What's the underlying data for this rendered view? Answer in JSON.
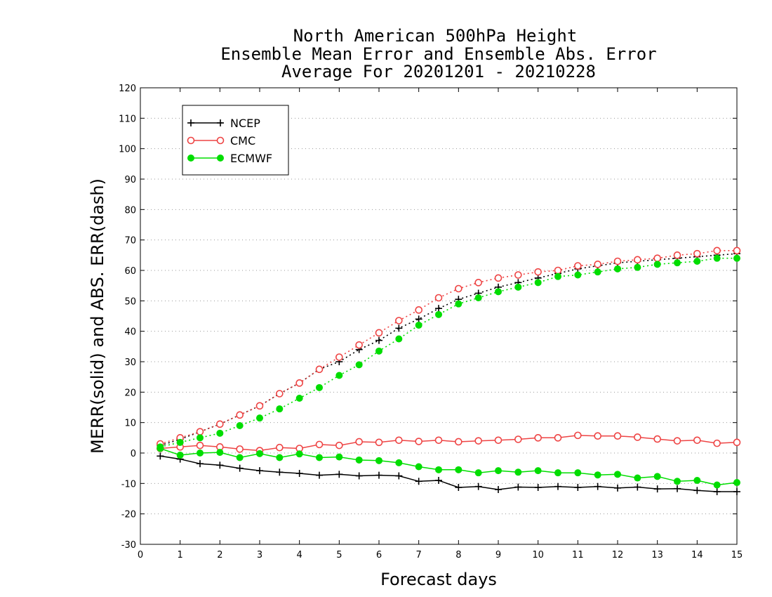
{
  "chart_data": {
    "type": "line",
    "title": [
      "North American 500hPa Height",
      "Ensemble Mean Error and Ensemble Abs. Error",
      "Average For 20201201 - 20210228"
    ],
    "xlabel": "Forecast days",
    "ylabel": "MERR(solid) and ABS. ERR(dash)",
    "xlim": [
      0,
      15
    ],
    "ylim": [
      -30,
      120
    ],
    "xticks": [
      0,
      1,
      2,
      3,
      4,
      5,
      6,
      7,
      8,
      9,
      10,
      11,
      12,
      13,
      14,
      15
    ],
    "yticks": [
      -30,
      -20,
      -10,
      0,
      10,
      20,
      30,
      40,
      50,
      60,
      70,
      80,
      90,
      100,
      110,
      120
    ],
    "grid": "horizontal dotted",
    "legend_position": "top-left",
    "x": [
      0.5,
      1,
      1.5,
      2,
      2.5,
      3,
      3.5,
      4,
      4.5,
      5,
      5.5,
      6,
      6.5,
      7,
      7.5,
      8,
      8.5,
      9,
      9.5,
      10,
      10.5,
      11,
      11.5,
      12,
      12.5,
      13,
      13.5,
      14,
      14.5,
      15
    ],
    "series": [
      {
        "name": "NCEP",
        "color": "#000000",
        "marker": "plus",
        "merr": [
          -1,
          -2,
          -3.5,
          -4,
          -5,
          -5.8,
          -6.3,
          -6.7,
          -7.3,
          -7,
          -7.5,
          -7.3,
          -7.5,
          -9.3,
          -9,
          -11.3,
          -11,
          -12,
          -11.2,
          -11.3,
          -11,
          -11.3,
          -11,
          -11.5,
          -11.2,
          -11.8,
          -11.7,
          -12.3,
          -12.7,
          -12.7
        ],
        "abserr": [
          2.5,
          4.5,
          7,
          9.5,
          12.5,
          15.5,
          19.5,
          23,
          27.5,
          30,
          34,
          37,
          41,
          44,
          47.5,
          50.5,
          52.5,
          54.5,
          56,
          57.5,
          59,
          60.5,
          61.5,
          62.5,
          63,
          63.5,
          64,
          64.5,
          65,
          65.5
        ]
      },
      {
        "name": "CMC",
        "color": "#ee4444",
        "marker": "open-circle",
        "merr": [
          1.5,
          2,
          2.5,
          2,
          1.3,
          0.8,
          1.8,
          1.5,
          2.8,
          2.5,
          3.7,
          3.5,
          4.2,
          3.8,
          4.2,
          3.7,
          4,
          4.2,
          4.5,
          5,
          5,
          5.8,
          5.6,
          5.6,
          5.2,
          4.6,
          4,
          4.2,
          3.2,
          3.5
        ],
        "abserr": [
          3,
          5,
          7,
          9.5,
          12.5,
          15.5,
          19.5,
          23,
          27.5,
          31.5,
          35.5,
          39.5,
          43.5,
          47,
          51,
          54,
          56,
          57.5,
          58.5,
          59.5,
          60,
          61.5,
          62,
          63,
          63.5,
          64,
          65,
          65.5,
          66.5,
          66.5
        ]
      },
      {
        "name": "ECMWF",
        "color": "#00dd00",
        "marker": "filled-circle",
        "merr": [
          1.5,
          -0.7,
          0,
          0.2,
          -1.5,
          -0.2,
          -1.5,
          -0.3,
          -1.5,
          -1.3,
          -2.3,
          -2.5,
          -3.2,
          -4.5,
          -5.5,
          -5.5,
          -6.5,
          -5.8,
          -6.3,
          -5.8,
          -6.5,
          -6.5,
          -7.2,
          -7,
          -8.2,
          -7.7,
          -9.3,
          -9,
          -10.5,
          -9.7
        ],
        "abserr": [
          2,
          3.5,
          5,
          6.5,
          9,
          11.5,
          14.5,
          18,
          21.5,
          25.5,
          29,
          33.5,
          37.5,
          42,
          45.5,
          49,
          51,
          53,
          54.5,
          56,
          58,
          58.5,
          59.5,
          60.5,
          61,
          62,
          62.5,
          63,
          64,
          64
        ]
      }
    ]
  }
}
